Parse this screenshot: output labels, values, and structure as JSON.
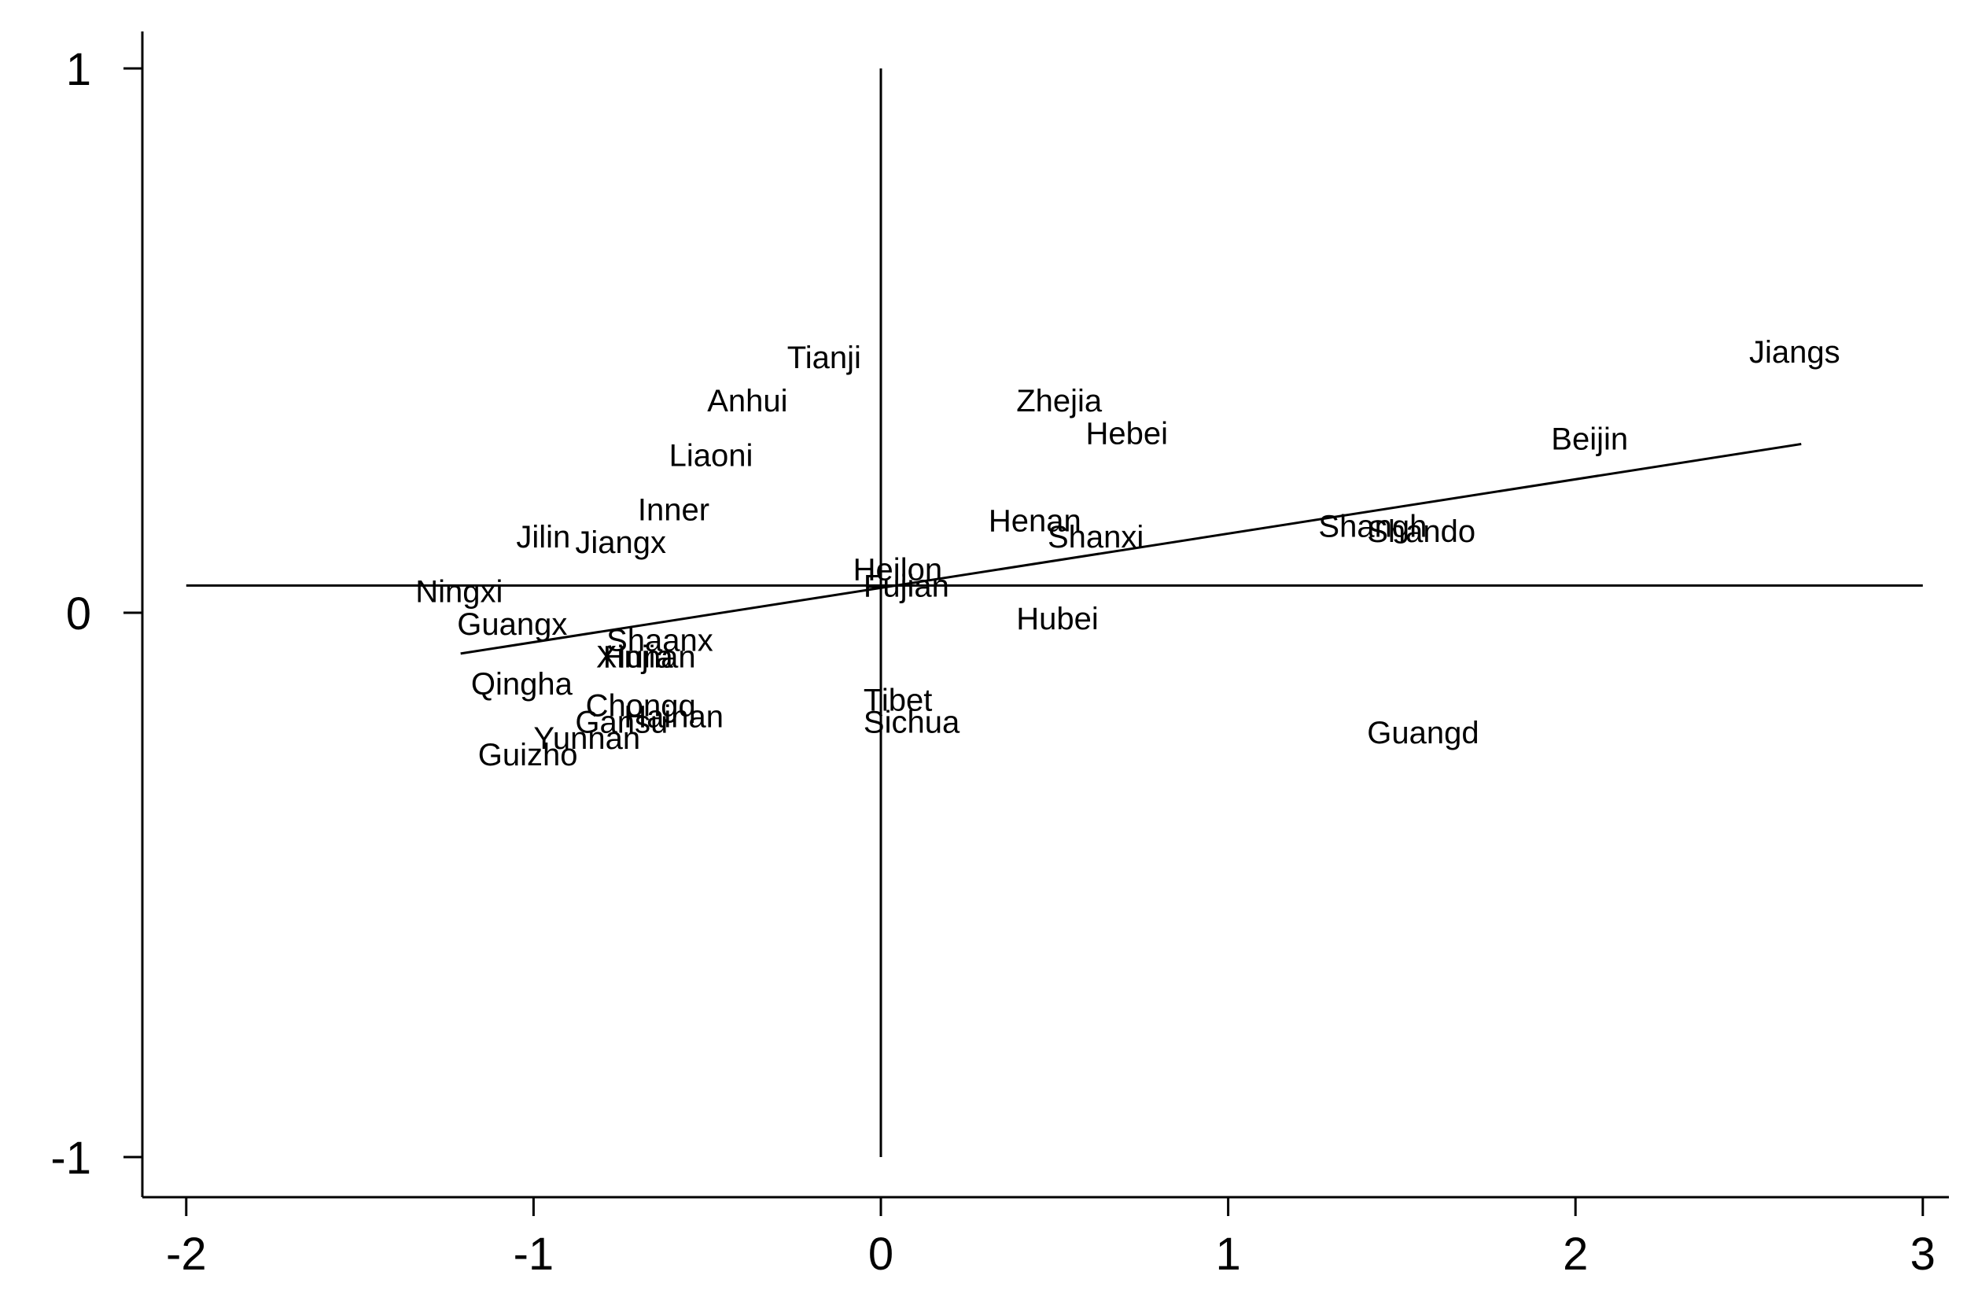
{
  "chart_data": {
    "type": "scatter",
    "title": "",
    "xlabel": "",
    "ylabel": "",
    "xlim": [
      -2.13,
      3.08
    ],
    "ylim": [
      -1.08,
      1.06
    ],
    "xticks": [
      -2,
      -1,
      0,
      1,
      2,
      3
    ],
    "yticks": [
      -1,
      0,
      1
    ],
    "xtick_labels": [
      "-2",
      "-1",
      "0",
      "1",
      "2",
      "3"
    ],
    "ytick_labels": [
      "-1",
      "0",
      "1"
    ],
    "grid": false,
    "legend": "none",
    "reference_lines": {
      "horizontal_y": 0.05,
      "vertical_x": 0.0,
      "vertical_range": [
        -1.0,
        1.0
      ],
      "horizontal_range": [
        -2.0,
        3.0
      ]
    },
    "fit_line": {
      "x": [
        -1.21,
        2.65
      ],
      "y": [
        -0.075,
        0.31
      ]
    },
    "points": [
      {
        "label": "Jiangs",
        "x": 2.5,
        "y": 0.48
      },
      {
        "label": "Beijin",
        "x": 1.93,
        "y": 0.32
      },
      {
        "label": "Zhejia",
        "x": 0.39,
        "y": 0.39
      },
      {
        "label": "Hebei",
        "x": 0.59,
        "y": 0.33
      },
      {
        "label": "Tianji",
        "x": -0.27,
        "y": 0.47
      },
      {
        "label": "Anhui",
        "x": -0.5,
        "y": 0.39
      },
      {
        "label": "Liaoni",
        "x": -0.61,
        "y": 0.29
      },
      {
        "label": "Inner",
        "x": -0.7,
        "y": 0.19
      },
      {
        "label": "Jilin",
        "x": -1.05,
        "y": 0.14
      },
      {
        "label": "Jiangx",
        "x": -0.88,
        "y": 0.13
      },
      {
        "label": "Henan",
        "x": 0.31,
        "y": 0.17
      },
      {
        "label": "Shanxi",
        "x": 0.48,
        "y": 0.14
      },
      {
        "label": "Shangh",
        "x": 1.26,
        "y": 0.16
      },
      {
        "label": "Shando",
        "x": 1.4,
        "y": 0.15
      },
      {
        "label": "Heilon",
        "x": -0.08,
        "y": 0.08
      },
      {
        "label": "Fujian",
        "x": -0.05,
        "y": 0.05
      },
      {
        "label": "Ningxi",
        "x": -1.34,
        "y": 0.04
      },
      {
        "label": "Guangx",
        "x": -1.22,
        "y": -0.02
      },
      {
        "label": "Hubei",
        "x": 0.39,
        "y": -0.01
      },
      {
        "label": "Shaanx",
        "x": -0.79,
        "y": -0.05
      },
      {
        "label": "Xinjia",
        "x": -0.82,
        "y": -0.08
      },
      {
        "label": "Hunan",
        "x": -0.8,
        "y": -0.08
      },
      {
        "label": "Qingha",
        "x": -1.18,
        "y": -0.13
      },
      {
        "label": "Chongq",
        "x": -0.85,
        "y": -0.17
      },
      {
        "label": "Hainan",
        "x": -0.74,
        "y": -0.19
      },
      {
        "label": "Gansu",
        "x": -0.88,
        "y": -0.2
      },
      {
        "label": "Tibet",
        "x": -0.05,
        "y": -0.16
      },
      {
        "label": "Sichua",
        "x": -0.05,
        "y": -0.2
      },
      {
        "label": "Yunnan",
        "x": -1.0,
        "y": -0.23
      },
      {
        "label": "Guizho",
        "x": -1.16,
        "y": -0.26
      },
      {
        "label": "Guangd",
        "x": 1.4,
        "y": -0.22
      }
    ]
  }
}
